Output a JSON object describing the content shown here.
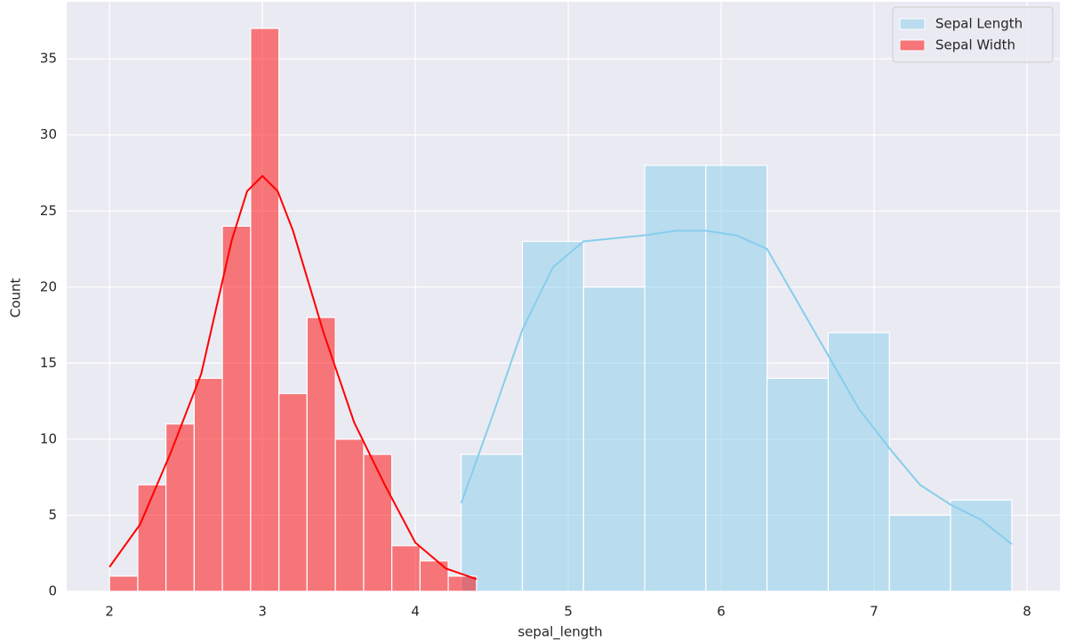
{
  "chart_data": {
    "type": "histogram",
    "x_label": "sepal_length",
    "y_label": "Count",
    "xlim": [
      1.72,
      8.215
    ],
    "ylim": [
      0,
      38.75
    ],
    "xticks": [
      2,
      3,
      4,
      5,
      6,
      7,
      8
    ],
    "yticks": [
      0,
      5,
      10,
      15,
      20,
      25,
      30,
      35
    ],
    "grid": true,
    "legend": "upper right",
    "series": [
      {
        "name": "Sepal Length",
        "color": "#87ceeb",
        "bins": [
          4.3,
          4.7,
          5.1,
          5.5,
          5.9,
          6.3,
          6.7,
          7.1,
          7.5,
          7.9
        ],
        "values": [
          9,
          23,
          20,
          28,
          28,
          14,
          17,
          5,
          6
        ],
        "kde": {
          "x": [
            4.3,
            4.5,
            4.7,
            4.9,
            5.1,
            5.3,
            5.5,
            5.7,
            5.9,
            6.1,
            6.3,
            6.5,
            6.7,
            6.9,
            7.1,
            7.3,
            7.5,
            7.7,
            7.9
          ],
          "values": [
            5.8,
            11.4,
            17.2,
            21.3,
            23,
            23.2,
            23.4,
            23.7,
            23.7,
            23.4,
            22.5,
            19,
            15.5,
            12,
            9.4,
            7,
            5.7,
            4.7,
            3.1
          ]
        }
      },
      {
        "name": "Sepal Width",
        "color": "#ff0000",
        "bins": [
          2,
          2.185,
          2.369,
          2.554,
          2.738,
          2.923,
          3.108,
          3.292,
          3.477,
          3.662,
          3.846,
          4.031,
          4.215,
          4.4
        ],
        "values": [
          1,
          7,
          11,
          14,
          24,
          37,
          13,
          18,
          10,
          9,
          3,
          2,
          1
        ],
        "kde": {
          "x": [
            2,
            2.2,
            2.4,
            2.6,
            2.8,
            2.9,
            3,
            3.1,
            3.2,
            3.4,
            3.6,
            3.8,
            4,
            4.2,
            4.4
          ],
          "values": [
            1.6,
            4.4,
            9.1,
            14.3,
            23.1,
            26.3,
            27.3,
            26.3,
            23.7,
            17,
            11.1,
            7,
            3.2,
            1.5,
            0.8
          ]
        }
      }
    ]
  }
}
